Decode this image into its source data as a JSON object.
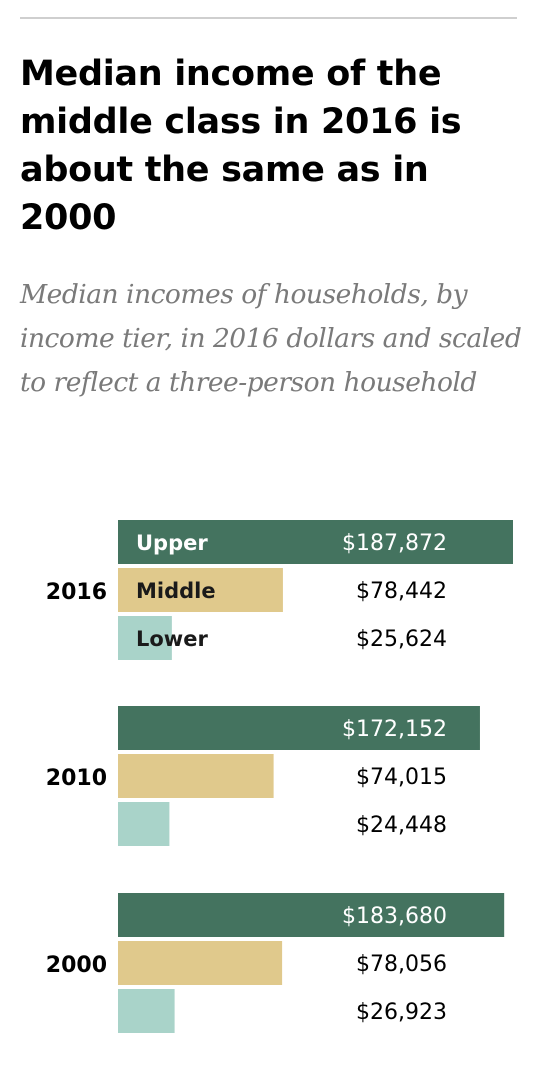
{
  "title": "Median income of the middle class in 2016 is about the same as in 2000",
  "subtitle": "Median incomes of households, by income tier, in 2016 dollars and scaled to reflect a three-person household",
  "colors": {
    "upper": "#44735f",
    "middle": "#e0c98c",
    "lower": "#a9d3c9"
  },
  "chart_data": {
    "type": "bar",
    "orientation": "horizontal",
    "categories": [
      "2016",
      "2010",
      "2000"
    ],
    "series": [
      {
        "name": "Upper",
        "values": [
          187872,
          172152,
          183680
        ],
        "labels": [
          "$187,872",
          "$172,152",
          "$183,680"
        ]
      },
      {
        "name": "Middle",
        "values": [
          78442,
          74015,
          78056
        ],
        "labels": [
          "$78,442",
          "$74,015",
          "$78,056"
        ]
      },
      {
        "name": "Lower",
        "values": [
          25624,
          24448,
          26923
        ],
        "labels": [
          "$25,624",
          "$24,448",
          "$26,923"
        ]
      }
    ],
    "xlim": [
      0,
      187872
    ],
    "grid": false,
    "legend": "inline in first group"
  }
}
